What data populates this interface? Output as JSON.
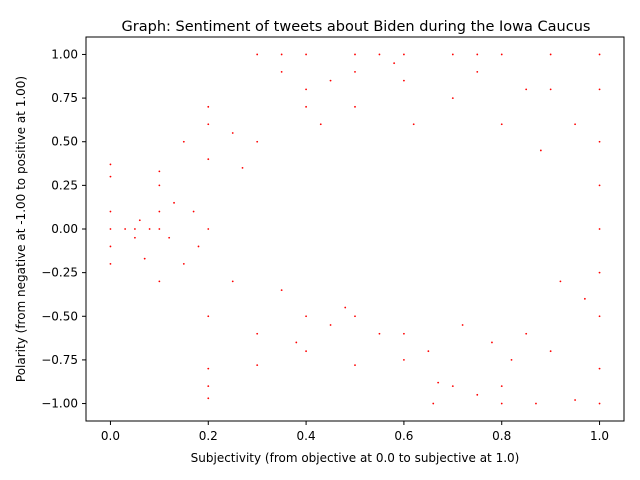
{
  "chart_data": {
    "type": "scatter",
    "title": "Graph: Sentiment of tweets about Biden during the Iowa Caucus",
    "xlabel": "Subjectivity (from objective at 0.0 to subjective at 1.0)",
    "ylabel": "Polarity (from negative at -1.00 to positive at 1.00)",
    "xlim": [
      -0.05,
      1.05
    ],
    "ylim": [
      -1.1,
      1.1
    ],
    "xticks": [
      0.0,
      0.2,
      0.4,
      0.6,
      0.8,
      1.0
    ],
    "xtick_labels": [
      "0.0",
      "0.2",
      "0.4",
      "0.6",
      "0.8",
      "1.0"
    ],
    "yticks": [
      1.0,
      0.75,
      0.5,
      0.25,
      0.0,
      -0.25,
      -0.5,
      -0.75,
      -1.0
    ],
    "ytick_labels": [
      "1.00",
      "0.75",
      "0.50",
      "0.25",
      "0.00",
      "−0.25",
      "−0.50",
      "−0.75",
      "−1.00"
    ],
    "marker_color": "#ff0000",
    "grid": false,
    "series": [
      {
        "points": [
          [
            0.0,
            0.0
          ],
          [
            0.0,
            -0.1
          ],
          [
            0.0,
            -0.2
          ],
          [
            0.0,
            0.1
          ],
          [
            0.0,
            0.3
          ],
          [
            0.0,
            0.37
          ],
          [
            0.03,
            0.0
          ],
          [
            0.05,
            0.0
          ],
          [
            0.05,
            -0.05
          ],
          [
            0.06,
            0.05
          ],
          [
            0.07,
            -0.17
          ],
          [
            0.08,
            0.0
          ],
          [
            0.1,
            0.0
          ],
          [
            0.1,
            -0.3
          ],
          [
            0.1,
            0.1
          ],
          [
            0.1,
            0.25
          ],
          [
            0.1,
            0.33
          ],
          [
            0.12,
            -0.05
          ],
          [
            0.13,
            0.15
          ],
          [
            0.15,
            0.5
          ],
          [
            0.15,
            -0.2
          ],
          [
            0.17,
            0.1
          ],
          [
            0.18,
            -0.1
          ],
          [
            0.2,
            0.6
          ],
          [
            0.2,
            0.7
          ],
          [
            0.2,
            -0.5
          ],
          [
            0.2,
            -0.8
          ],
          [
            0.2,
            -0.9
          ],
          [
            0.2,
            -0.97
          ],
          [
            0.2,
            0.0
          ],
          [
            0.2,
            0.4
          ],
          [
            0.25,
            0.55
          ],
          [
            0.25,
            -0.3
          ],
          [
            0.27,
            0.35
          ],
          [
            0.3,
            1.0
          ],
          [
            0.3,
            0.5
          ],
          [
            0.3,
            -0.78
          ],
          [
            0.3,
            -0.6
          ],
          [
            0.35,
            1.0
          ],
          [
            0.35,
            0.9
          ],
          [
            0.35,
            -0.35
          ],
          [
            0.38,
            -0.65
          ],
          [
            0.4,
            1.0
          ],
          [
            0.4,
            0.8
          ],
          [
            0.4,
            0.7
          ],
          [
            0.4,
            -0.5
          ],
          [
            0.4,
            -0.7
          ],
          [
            0.43,
            0.6
          ],
          [
            0.45,
            0.85
          ],
          [
            0.45,
            -0.55
          ],
          [
            0.48,
            -0.45
          ],
          [
            0.5,
            1.0
          ],
          [
            0.5,
            0.9
          ],
          [
            0.5,
            -0.78
          ],
          [
            0.5,
            -0.5
          ],
          [
            0.5,
            0.7
          ],
          [
            0.55,
            1.0
          ],
          [
            0.55,
            -0.6
          ],
          [
            0.58,
            0.95
          ],
          [
            0.6,
            1.0
          ],
          [
            0.6,
            0.85
          ],
          [
            0.6,
            -0.75
          ],
          [
            0.6,
            -0.6
          ],
          [
            0.62,
            0.6
          ],
          [
            0.65,
            -0.7
          ],
          [
            0.66,
            -1.0
          ],
          [
            0.67,
            -0.88
          ],
          [
            0.7,
            1.0
          ],
          [
            0.7,
            -0.9
          ],
          [
            0.7,
            0.75
          ],
          [
            0.72,
            -0.55
          ],
          [
            0.75,
            1.0
          ],
          [
            0.75,
            -0.95
          ],
          [
            0.75,
            0.9
          ],
          [
            0.78,
            -0.65
          ],
          [
            0.8,
            1.0
          ],
          [
            0.8,
            -0.9
          ],
          [
            0.8,
            -1.0
          ],
          [
            0.8,
            0.6
          ],
          [
            0.82,
            -0.75
          ],
          [
            0.85,
            0.8
          ],
          [
            0.85,
            -0.6
          ],
          [
            0.87,
            -1.0
          ],
          [
            0.88,
            0.45
          ],
          [
            0.9,
            1.0
          ],
          [
            0.9,
            -0.7
          ],
          [
            0.9,
            0.8
          ],
          [
            0.92,
            -0.3
          ],
          [
            0.95,
            0.6
          ],
          [
            0.95,
            -0.98
          ],
          [
            0.97,
            -0.4
          ],
          [
            1.0,
            1.0
          ],
          [
            1.0,
            -1.0
          ],
          [
            1.0,
            0.8
          ],
          [
            1.0,
            0.5
          ],
          [
            1.0,
            0.25
          ],
          [
            1.0,
            0.0
          ],
          [
            1.0,
            -0.25
          ],
          [
            1.0,
            -0.5
          ],
          [
            1.0,
            -0.8
          ]
        ]
      }
    ]
  }
}
